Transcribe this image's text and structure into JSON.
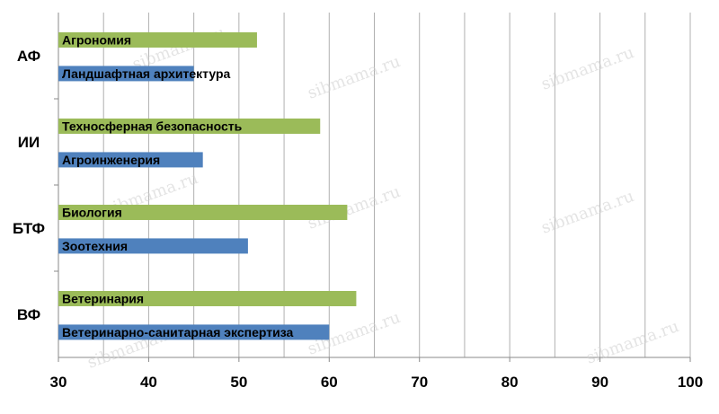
{
  "chart_data": {
    "type": "bar",
    "orientation": "horizontal",
    "xlim": [
      30,
      100
    ],
    "xticks": [
      30,
      40,
      50,
      60,
      70,
      80,
      90,
      100
    ],
    "grid": true,
    "groups": [
      {
        "label": "АФ",
        "bars": [
          {
            "label": "Агрономия",
            "value": 52,
            "color": "#9bbb59"
          },
          {
            "label": "Ландшафтная архитектура",
            "value": 45,
            "color": "#4f81bd"
          }
        ]
      },
      {
        "label": "ИИ",
        "bars": [
          {
            "label": "Техносферная безопасность",
            "value": 59,
            "color": "#9bbb59"
          },
          {
            "label": "Агроинженерия",
            "value": 46,
            "color": "#4f81bd"
          }
        ]
      },
      {
        "label": "БТФ",
        "bars": [
          {
            "label": "Биология",
            "value": 62,
            "color": "#9bbb59"
          },
          {
            "label": "Зоотехния",
            "value": 51,
            "color": "#4f81bd"
          }
        ]
      },
      {
        "label": "ВФ",
        "bars": [
          {
            "label": "Ветеринария",
            "value": 63,
            "color": "#9bbb59"
          },
          {
            "label": "Ветеринарно-санитарная экспертиза",
            "value": 60,
            "color": "#4f81bd"
          }
        ]
      }
    ]
  },
  "watermark": "sibmama.ru"
}
